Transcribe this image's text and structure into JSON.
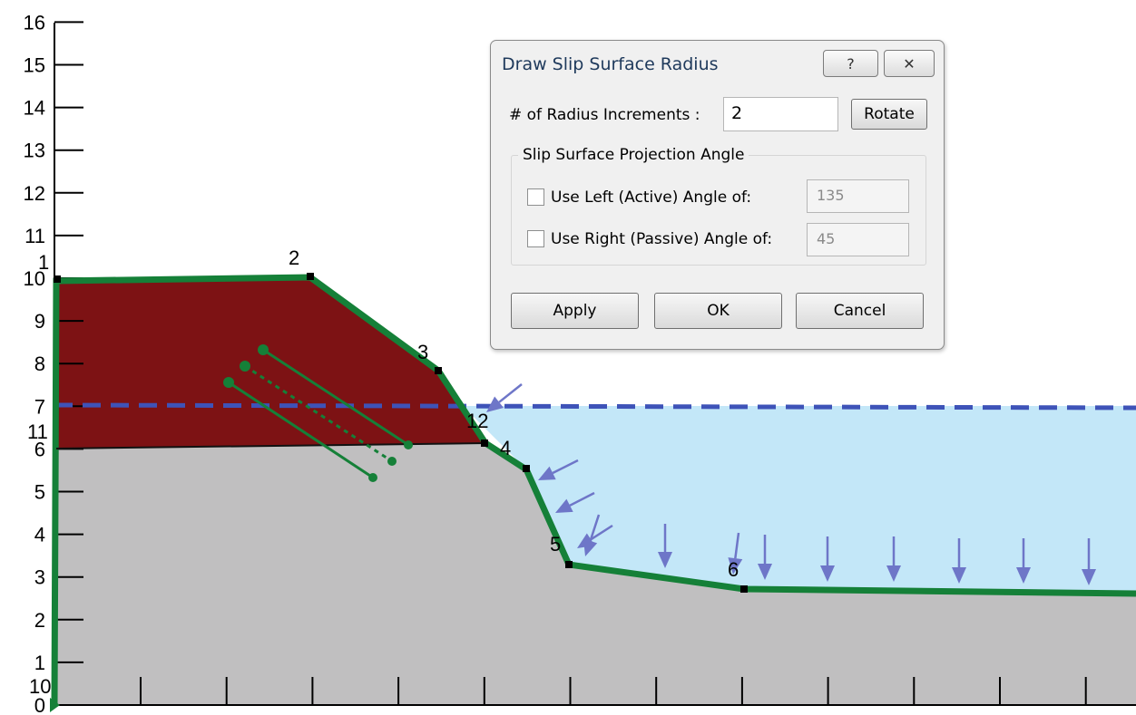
{
  "colors": {
    "ground": "#c0bfc0",
    "soil_layer": "#7d1214",
    "water": "#c3e7f8",
    "slope_line": "#158038",
    "water_table": "#3e53b8",
    "arrow": "#6e76c8"
  },
  "plot": {
    "y_axis_ticks": [
      "0",
      "1",
      "2",
      "3",
      "4",
      "5",
      "6",
      "7",
      "8",
      "9",
      "10",
      "11",
      "12",
      "13",
      "14",
      "15",
      "16"
    ],
    "point_labels": [
      "1",
      "2",
      "3",
      "4",
      "5",
      "6",
      "10",
      "11",
      "12"
    ]
  },
  "dialog": {
    "title": "Draw Slip Surface Radius",
    "help_button": "?",
    "close_button": "✕",
    "increments_label": "# of Radius Increments :",
    "increments_value": "2",
    "rotate_label": "Rotate",
    "group_title": "Slip Surface Projection Angle",
    "left_label": "Use Left (Active) Angle of:",
    "left_value": "135",
    "right_label": "Use Right (Passive) Angle of:",
    "right_value": "45",
    "apply_label": "Apply",
    "ok_label": "OK",
    "cancel_label": "Cancel"
  }
}
